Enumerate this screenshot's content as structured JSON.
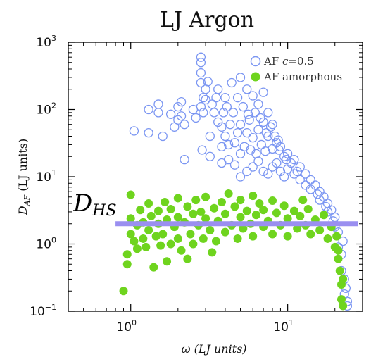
{
  "chart_data": {
    "type": "scatter",
    "title": "LJ Argon",
    "xlabel": "ω (LJ units)",
    "ylabel_main": "D",
    "ylabel_sub": "AF",
    "ylabel_rest": " (LJ units)",
    "x_scale": "log",
    "y_scale": "log",
    "xlim": [
      0.4,
      30
    ],
    "ylim": [
      0.1,
      1000
    ],
    "x_ticks": [
      {
        "value": 1,
        "base": "10",
        "exp": "0"
      },
      {
        "value": 10,
        "base": "10",
        "exp": "1"
      }
    ],
    "y_ticks": [
      {
        "value": 0.1,
        "base": "10",
        "exp": "−1"
      },
      {
        "value": 1,
        "base": "10",
        "exp": "0"
      },
      {
        "value": 10,
        "base": "10",
        "exp": "1"
      },
      {
        "value": 100,
        "base": "10",
        "exp": "2"
      },
      {
        "value": 1000,
        "base": "10",
        "exp": "3"
      }
    ],
    "legend_position": "top-right",
    "series": [
      {
        "name_prefix": "AF ",
        "name_var": "c",
        "name_suffix": "=0.5",
        "marker": "open-circle",
        "color": "#7b96f2",
        "points": [
          [
            1.05,
            48
          ],
          [
            1.3,
            100
          ],
          [
            1.3,
            45
          ],
          [
            1.5,
            120
          ],
          [
            1.5,
            90
          ],
          [
            1.6,
            40
          ],
          [
            1.8,
            85
          ],
          [
            1.9,
            55
          ],
          [
            2.0,
            110
          ],
          [
            2.0,
            70
          ],
          [
            2.1,
            130
          ],
          [
            2.1,
            80
          ],
          [
            2.2,
            60
          ],
          [
            2.2,
            18
          ],
          [
            2.5,
            100
          ],
          [
            2.6,
            75
          ],
          [
            2.8,
            600
          ],
          [
            2.8,
            500
          ],
          [
            2.8,
            350
          ],
          [
            2.8,
            250
          ],
          [
            2.8,
            110
          ],
          [
            2.85,
            25
          ],
          [
            2.9,
            150
          ],
          [
            2.9,
            90
          ],
          [
            3.0,
            200
          ],
          [
            3.0,
            140
          ],
          [
            3.1,
            260
          ],
          [
            3.2,
            40
          ],
          [
            3.2,
            20
          ],
          [
            3.4,
            90
          ],
          [
            3.5,
            150
          ],
          [
            3.6,
            200
          ],
          [
            3.6,
            65
          ],
          [
            3.8,
            55
          ],
          [
            3.8,
            28
          ],
          [
            3.8,
            16
          ],
          [
            3.9,
            90
          ],
          [
            4.0,
            150
          ],
          [
            4.0,
            40
          ],
          [
            4.2,
            30
          ],
          [
            4.2,
            18
          ],
          [
            4.3,
            60
          ],
          [
            4.4,
            250
          ],
          [
            4.5,
            90
          ],
          [
            4.6,
            32
          ],
          [
            4.6,
            15
          ],
          [
            4.8,
            150
          ],
          [
            4.8,
            45
          ],
          [
            5.0,
            300
          ],
          [
            5.0,
            60
          ],
          [
            5.0,
            22
          ],
          [
            5.0,
            10
          ],
          [
            5.2,
            110
          ],
          [
            5.3,
            28
          ],
          [
            5.5,
            200
          ],
          [
            5.5,
            45
          ],
          [
            5.5,
            12
          ],
          [
            5.7,
            70
          ],
          [
            5.8,
            25
          ],
          [
            6.0,
            160
          ],
          [
            6.0,
            38
          ],
          [
            6.0,
            14
          ],
          [
            6.2,
            90
          ],
          [
            6.3,
            22
          ],
          [
            6.5,
            120
          ],
          [
            6.5,
            50
          ],
          [
            6.5,
            17
          ],
          [
            6.8,
            30
          ],
          [
            7.0,
            180
          ],
          [
            7.0,
            65
          ],
          [
            7.0,
            12
          ],
          [
            7.2,
            24
          ],
          [
            7.5,
            90
          ],
          [
            7.5,
            40
          ],
          [
            7.5,
            11
          ],
          [
            7.8,
            55
          ],
          [
            8.0,
            60
          ],
          [
            8.0,
            26
          ],
          [
            8.0,
            14
          ],
          [
            8.3,
            40
          ],
          [
            8.5,
            32
          ],
          [
            8.5,
            16
          ],
          [
            8.8,
            25
          ],
          [
            9.0,
            28
          ],
          [
            9.0,
            12
          ],
          [
            9.5,
            20
          ],
          [
            9.5,
            10
          ],
          [
            10.0,
            22
          ],
          [
            10.0,
            13
          ],
          [
            10.5,
            16
          ],
          [
            11.0,
            18
          ],
          [
            11.0,
            11
          ],
          [
            12.0,
            14
          ],
          [
            12.0,
            9
          ],
          [
            13.0,
            11
          ],
          [
            13.0,
            7.5
          ],
          [
            14.0,
            9
          ],
          [
            14.0,
            6.5
          ],
          [
            15.0,
            7.5
          ],
          [
            16.0,
            6
          ],
          [
            16.0,
            4.5
          ],
          [
            17.0,
            5
          ],
          [
            18.0,
            4
          ],
          [
            18.0,
            3
          ],
          [
            19.0,
            3.2
          ],
          [
            20.0,
            2.5
          ],
          [
            20.0,
            1.8
          ],
          [
            21.0,
            1.5
          ],
          [
            21.0,
            0.9
          ],
          [
            22.0,
            0.7
          ],
          [
            22.0,
            0.4
          ],
          [
            23.0,
            0.3
          ],
          [
            23.0,
            0.18
          ],
          [
            24.0,
            0.14
          ],
          [
            24.0,
            0.12
          ],
          [
            23.5,
            0.22
          ],
          [
            22.5,
            1.1
          ],
          [
            19.5,
            2.2
          ],
          [
            17.5,
            3.6
          ],
          [
            15.5,
            5.5
          ],
          [
            3.3,
            120
          ],
          [
            4.1,
            110
          ],
          [
            5.6,
            85
          ],
          [
            6.7,
            75
          ],
          [
            7.3,
            45
          ],
          [
            8.7,
            35
          ],
          [
            9.8,
            18
          ],
          [
            11.5,
            12
          ]
        ]
      },
      {
        "name_prefix": "AF amorphous",
        "name_var": "",
        "name_suffix": "",
        "marker": "filled-circle",
        "color": "#6fd41e",
        "points": [
          [
            0.9,
            0.2
          ],
          [
            0.95,
            0.5
          ],
          [
            0.95,
            0.7
          ],
          [
            1.0,
            1.4
          ],
          [
            1.0,
            2.4
          ],
          [
            1.0,
            5.4
          ],
          [
            1.05,
            1.1
          ],
          [
            1.1,
            0.85
          ],
          [
            1.1,
            1.9
          ],
          [
            1.15,
            3.2
          ],
          [
            1.2,
            2.1
          ],
          [
            1.2,
            1.2
          ],
          [
            1.25,
            0.9
          ],
          [
            1.3,
            4.0
          ],
          [
            1.3,
            1.6
          ],
          [
            1.35,
            2.6
          ],
          [
            1.4,
            0.45
          ],
          [
            1.45,
            1.3
          ],
          [
            1.5,
            3.1
          ],
          [
            1.5,
            2.0
          ],
          [
            1.55,
            0.95
          ],
          [
            1.6,
            1.4
          ],
          [
            1.65,
            4.2
          ],
          [
            1.7,
            2.3
          ],
          [
            1.8,
            1.0
          ],
          [
            1.8,
            3.3
          ],
          [
            1.9,
            1.8
          ],
          [
            2.0,
            2.5
          ],
          [
            2.0,
            1.2
          ],
          [
            2.0,
            4.8
          ],
          [
            2.1,
            0.8
          ],
          [
            2.2,
            2.1
          ],
          [
            2.3,
            3.6
          ],
          [
            2.4,
            1.4
          ],
          [
            2.5,
            2.8
          ],
          [
            2.5,
            1.0
          ],
          [
            2.6,
            4.5
          ],
          [
            2.7,
            1.9
          ],
          [
            2.8,
            3.0
          ],
          [
            2.9,
            1.2
          ],
          [
            3.0,
            2.4
          ],
          [
            3.0,
            5.0
          ],
          [
            3.2,
            1.6
          ],
          [
            3.4,
            3.4
          ],
          [
            3.5,
            1.1
          ],
          [
            3.6,
            2.2
          ],
          [
            3.8,
            4.2
          ],
          [
            4.0,
            1.5
          ],
          [
            4.0,
            2.8
          ],
          [
            4.2,
            5.6
          ],
          [
            4.4,
            1.9
          ],
          [
            4.6,
            3.6
          ],
          [
            4.8,
            1.2
          ],
          [
            5.0,
            2.5
          ],
          [
            5.0,
            4.5
          ],
          [
            5.2,
            1.7
          ],
          [
            5.5,
            3.1
          ],
          [
            5.8,
            2.0
          ],
          [
            6.0,
            5.2
          ],
          [
            6.0,
            1.3
          ],
          [
            6.3,
            2.7
          ],
          [
            6.6,
            4.0
          ],
          [
            7.0,
            1.8
          ],
          [
            7.0,
            3.2
          ],
          [
            7.5,
            2.2
          ],
          [
            8.0,
            4.4
          ],
          [
            8.0,
            1.4
          ],
          [
            8.5,
            2.9
          ],
          [
            9.0,
            1.9
          ],
          [
            9.5,
            3.7
          ],
          [
            10.0,
            2.4
          ],
          [
            10.0,
            1.3
          ],
          [
            11.0,
            3.1
          ],
          [
            11.5,
            1.7
          ],
          [
            12.0,
            2.6
          ],
          [
            13.0,
            1.9
          ],
          [
            13.5,
            3.3
          ],
          [
            14.0,
            1.4
          ],
          [
            15.0,
            2.3
          ],
          [
            16.0,
            1.6
          ],
          [
            17.0,
            2.7
          ],
          [
            18.0,
            1.2
          ],
          [
            19.0,
            1.8
          ],
          [
            20.0,
            0.9
          ],
          [
            20.5,
            1.3
          ],
          [
            21.0,
            0.6
          ],
          [
            21.5,
            0.4
          ],
          [
            22.0,
            0.25
          ],
          [
            22.0,
            0.15
          ],
          [
            22.5,
            0.12
          ],
          [
            22.5,
            0.3
          ],
          [
            21.0,
            0.8
          ],
          [
            2.3,
            0.6
          ],
          [
            1.7,
            0.55
          ],
          [
            3.3,
            0.75
          ],
          [
            12.5,
            4.5
          ]
        ]
      }
    ],
    "annotation": {
      "label_main": "D",
      "label_sub": "HS",
      "y_value": 2.0,
      "x_range": [
        0.8,
        28
      ],
      "color": "#9a8ff0"
    }
  }
}
